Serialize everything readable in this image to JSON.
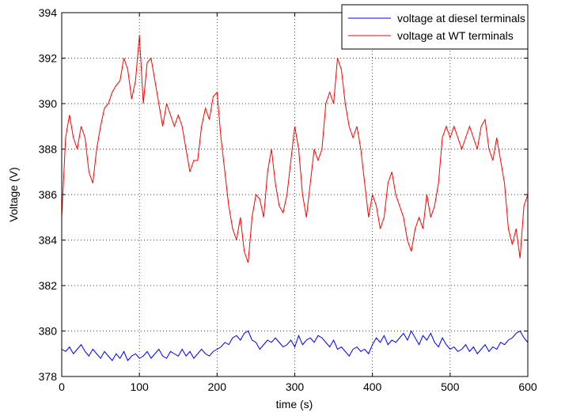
{
  "chart_data": {
    "type": "line",
    "xlabel": "time (s)",
    "ylabel": "Voltage (V)",
    "x": [
      0,
      5,
      10,
      15,
      20,
      25,
      30,
      35,
      40,
      45,
      50,
      55,
      60,
      65,
      70,
      75,
      80,
      85,
      90,
      95,
      100,
      105,
      110,
      115,
      120,
      125,
      130,
      135,
      140,
      145,
      150,
      155,
      160,
      165,
      170,
      175,
      180,
      185,
      190,
      195,
      200,
      205,
      210,
      215,
      220,
      225,
      230,
      235,
      240,
      245,
      250,
      255,
      260,
      265,
      270,
      275,
      280,
      285,
      290,
      295,
      300,
      305,
      310,
      315,
      320,
      325,
      330,
      335,
      340,
      345,
      350,
      355,
      360,
      365,
      370,
      375,
      380,
      385,
      390,
      395,
      400,
      405,
      410,
      415,
      420,
      425,
      430,
      435,
      440,
      445,
      450,
      455,
      460,
      465,
      470,
      475,
      480,
      485,
      490,
      495,
      500,
      505,
      510,
      515,
      520,
      525,
      530,
      535,
      540,
      545,
      550,
      555,
      560,
      565,
      570,
      575,
      580,
      585,
      590,
      595,
      600
    ],
    "series": [
      {
        "name": "voltage at diesel terminals",
        "color": "#0000ff",
        "values": [
          379.2,
          379.1,
          379.3,
          379.0,
          379.2,
          379.4,
          379.1,
          378.9,
          379.2,
          379.0,
          378.8,
          379.1,
          378.9,
          378.7,
          379.0,
          378.8,
          379.1,
          378.7,
          378.9,
          379.0,
          378.8,
          378.9,
          379.1,
          378.8,
          379.0,
          379.2,
          378.9,
          378.8,
          379.1,
          379.0,
          378.9,
          379.2,
          378.9,
          379.1,
          378.8,
          379.0,
          379.2,
          379.0,
          378.9,
          379.1,
          379.2,
          379.3,
          379.5,
          379.4,
          379.7,
          379.8,
          379.6,
          379.9,
          380.0,
          379.6,
          379.5,
          379.2,
          379.4,
          379.6,
          379.5,
          379.7,
          379.5,
          379.3,
          379.4,
          379.6,
          379.3,
          379.8,
          379.4,
          379.6,
          379.7,
          379.5,
          379.8,
          379.7,
          379.5,
          379.3,
          379.6,
          379.2,
          379.3,
          379.1,
          378.9,
          379.2,
          379.3,
          379.1,
          379.2,
          379.0,
          379.4,
          379.7,
          379.5,
          379.8,
          379.4,
          379.6,
          379.5,
          379.7,
          379.9,
          379.6,
          380.0,
          379.7,
          379.4,
          379.8,
          379.6,
          379.9,
          379.5,
          379.3,
          379.7,
          379.4,
          379.2,
          379.3,
          379.1,
          379.2,
          379.4,
          379.1,
          379.3,
          379.0,
          379.2,
          379.4,
          379.1,
          379.3,
          379.2,
          379.5,
          379.4,
          379.6,
          379.7,
          379.9,
          380.0,
          379.7,
          379.5
        ]
      },
      {
        "name": "voltage at WT terminals",
        "color": "#ff0000",
        "values": [
          385,
          388.5,
          389.5,
          388.5,
          388,
          389,
          388.5,
          387,
          386.5,
          388,
          389,
          389.8,
          390,
          390.5,
          390.8,
          391,
          392,
          391.5,
          390.2,
          391,
          393,
          390,
          391.8,
          392,
          391,
          390,
          389,
          390,
          389.5,
          389,
          389.5,
          389,
          388,
          387,
          387.5,
          387.5,
          389,
          389.8,
          389.3,
          390.3,
          390.5,
          388.5,
          387,
          385.5,
          384.5,
          384,
          385,
          383.5,
          383,
          385,
          386,
          385.8,
          385,
          387,
          388,
          386.5,
          385.5,
          385.2,
          386,
          387.5,
          389,
          388,
          386,
          385,
          386.5,
          388,
          387.5,
          388,
          390,
          390.5,
          390,
          392,
          391.5,
          390,
          389,
          388.5,
          389,
          388,
          386.5,
          385,
          386,
          385.5,
          384.5,
          385,
          386.5,
          387,
          386,
          385.5,
          385,
          384,
          383.5,
          384.5,
          385,
          384.5,
          386,
          385,
          385.5,
          386.5,
          388.5,
          389,
          388.5,
          389,
          388.5,
          388,
          388.5,
          389,
          388.5,
          388,
          389,
          389.3,
          388,
          387.5,
          388.5,
          387.5,
          386.5,
          384.5,
          383.8,
          384.5,
          383.2,
          385.5,
          386
        ]
      }
    ],
    "xlim": [
      0,
      600
    ],
    "xticks": [
      0,
      100,
      200,
      300,
      400,
      500,
      600
    ],
    "ylim": [
      378,
      394
    ],
    "yticks": [
      378,
      380,
      382,
      384,
      386,
      388,
      390,
      392,
      394
    ],
    "grid": true,
    "legend": "upper right"
  }
}
